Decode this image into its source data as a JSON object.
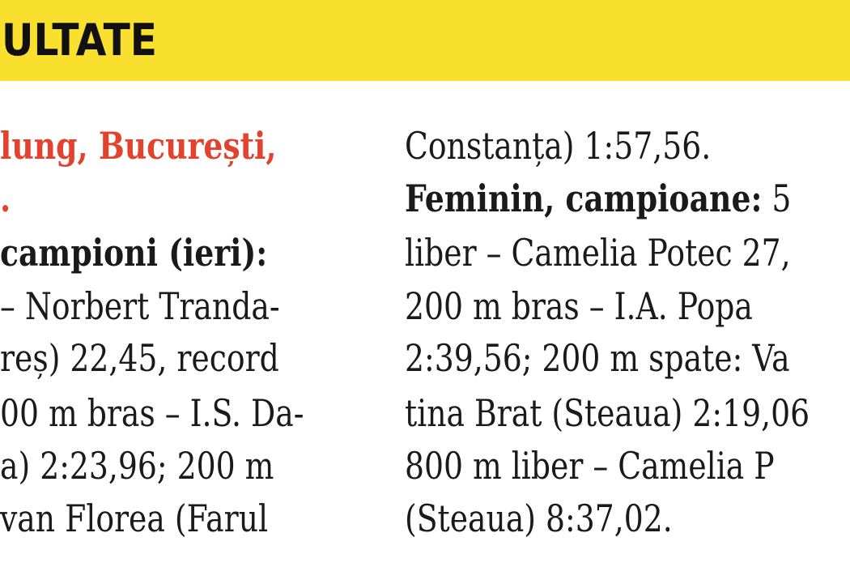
{
  "header": {
    "title": "ULTATE"
  },
  "left": {
    "lines": [
      "lung, București,",
      ".",
      "campioni (ieri):",
      "– Norbert Tranda-",
      "reș) 22,45, record",
      "00 m bras – I.S. Da-",
      "a) 2:23,96; 200 m",
      "van Florea (Farul"
    ]
  },
  "right": {
    "lines": [
      "Constanța) 1:57,56.",
      "liber – Camelia Potec 27,",
      "200 m bras – I.A. Popa",
      "2:39,56; 200 m spate: Va",
      "tina Brat (Steaua) 2:19,06",
      "800 m liber – Camelia P",
      "(Steaua) 8:37,02."
    ],
    "subheading": {
      "label": "Feminin, campioane:",
      "text": "5"
    }
  }
}
